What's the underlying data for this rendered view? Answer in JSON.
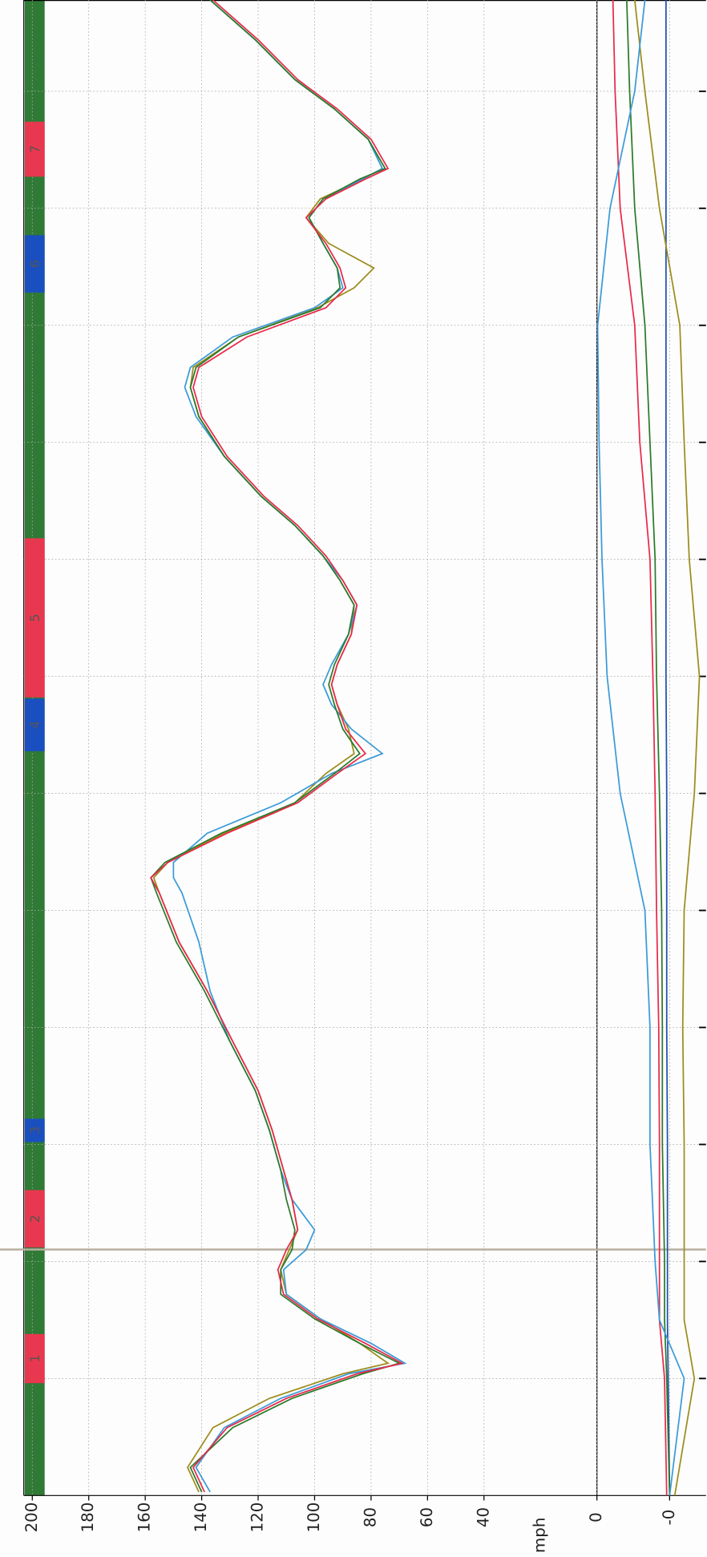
{
  "chart_data": [
    {
      "type": "line",
      "y_label": "mph",
      "grid": true,
      "ylim": [
        0,
        203
      ],
      "yticks": [
        0,
        40,
        60,
        80,
        100,
        120,
        140,
        160,
        180,
        200
      ],
      "xlim": [
        0,
        12.78
      ],
      "xticks": [
        1,
        2,
        3,
        4,
        5,
        6,
        7,
        8,
        9,
        10,
        11,
        12
      ],
      "x": [
        0.03,
        0.24,
        0.58,
        0.83,
        1.04,
        1.13,
        1.3,
        1.51,
        1.72,
        1.93,
        2.1,
        2.27,
        2.53,
        2.78,
        3.12,
        3.46,
        3.88,
        4.31,
        4.73,
        5.15,
        5.28,
        5.41,
        5.66,
        5.92,
        6.17,
        6.34,
        6.55,
        6.76,
        6.93,
        7.1,
        7.36,
        7.61,
        7.82,
        8.03,
        8.29,
        8.54,
        8.88,
        9.22,
        9.47,
        9.64,
        9.9,
        10.15,
        10.32,
        10.49,
        10.7,
        10.92,
        11.08,
        11.25,
        11.34,
        11.59,
        11.85,
        12.1,
        12.44,
        12.78
      ],
      "series": [
        {
          "color": "#9c8c1c",
          "values": [
            141,
            145,
            136,
            116,
            90,
            74,
            84,
            98,
            110,
            112,
            109,
            106,
            108,
            111,
            115,
            120,
            129,
            138,
            148,
            155,
            157,
            152,
            132,
            107,
            96,
            86,
            88,
            92,
            94,
            92,
            87,
            86,
            91,
            97,
            107,
            119,
            132,
            141,
            144,
            143,
            127,
            99,
            86,
            79,
            95,
            103,
            98,
            83,
            76,
            81,
            93,
            107,
            121,
            137
          ]
        },
        {
          "color": "#3a9ad9",
          "values": [
            137,
            142,
            132,
            112,
            88,
            68,
            80,
            98,
            110,
            111,
            103,
            100,
            108,
            112,
            116,
            121,
            130,
            137,
            141,
            147,
            150,
            150,
            138,
            112,
            94,
            76,
            87,
            94,
            97,
            94,
            88,
            85,
            90,
            97,
            107,
            119,
            132,
            142,
            146,
            144,
            129,
            100,
            90,
            92,
            97,
            102,
            97,
            83,
            76,
            81,
            93,
            107,
            121,
            137
          ]
        },
        {
          "color": "#2b7a2b",
          "values": [
            140,
            144,
            129,
            108,
            83,
            70,
            84,
            100,
            112,
            112,
            108,
            107,
            110,
            112,
            116,
            121,
            130,
            139,
            149,
            156,
            158,
            153,
            133,
            107,
            93,
            84,
            90,
            93,
            95,
            93,
            88,
            86,
            91,
            97,
            107,
            119,
            132,
            141,
            144,
            142,
            127,
            98,
            91,
            92,
            97,
            102,
            97,
            84,
            75,
            81,
            93,
            107,
            121,
            137
          ]
        },
        {
          "color": "#e8294a",
          "values": [
            139,
            143,
            131,
            110,
            85,
            69,
            82,
            99,
            111,
            113,
            110,
            106,
            108,
            111,
            115,
            120,
            129,
            138,
            148,
            155,
            158,
            152,
            131,
            106,
            92,
            82,
            89,
            92,
            94,
            92,
            87,
            85,
            90,
            96,
            106,
            118,
            131,
            140,
            143,
            141,
            124,
            96,
            89,
            91,
            96,
            103,
            96,
            82,
            74,
            80,
            92,
            106,
            120,
            136
          ]
        }
      ],
      "corners": [
        {
          "label": "1",
          "color": "#e8384f",
          "from": 0.96,
          "to": 1.38
        },
        {
          "label": "2",
          "color": "#e8384f",
          "from": 2.12,
          "to": 2.61
        },
        {
          "label": "3",
          "color": "#1a4fc0",
          "from": 3.02,
          "to": 3.22
        },
        {
          "label": "4",
          "color": "#1a4fc0",
          "from": 6.36,
          "to": 6.81
        },
        {
          "label": "5",
          "color": "#e8384f",
          "from": 6.82,
          "to": 8.18
        },
        {
          "label": "6",
          "color": "#1a4fc0",
          "from": 10.28,
          "to": 10.77
        },
        {
          "label": "7",
          "color": "#e8384f",
          "from": 11.27,
          "to": 11.74
        }
      ]
    },
    {
      "type": "line",
      "grid": true,
      "ylim": [
        -0.5,
        1.0
      ],
      "yticks": [
        {
          "value": 0,
          "label": "-0"
        }
      ],
      "xlim": [
        0,
        12.78
      ],
      "x": [
        0,
        1,
        1.5,
        2,
        3,
        4,
        5,
        6,
        7,
        8,
        9,
        10,
        11,
        12,
        12.78
      ],
      "series": [
        {
          "color": "#2050b0",
          "values": [
            0,
            0.02,
            0.03,
            0.03,
            0.03,
            0.04,
            0.04,
            0.04,
            0.05,
            0.05,
            0.05,
            0.05,
            0.05,
            0.05,
            0.05
          ]
        },
        {
          "color": "#9c8c1c",
          "values": [
            -0.07,
            -0.34,
            -0.2,
            -0.2,
            -0.2,
            -0.18,
            -0.2,
            -0.34,
            -0.41,
            -0.27,
            -0.2,
            -0.14,
            0.14,
            0.34,
            0.48
          ]
        },
        {
          "color": "#2b7a2b",
          "values": [
            0,
            0.04,
            0.07,
            0.07,
            0.1,
            0.1,
            0.11,
            0.14,
            0.18,
            0.2,
            0.27,
            0.34,
            0.48,
            0.55,
            0.59
          ]
        },
        {
          "color": "#e8294a",
          "values": [
            0.04,
            0.07,
            0.14,
            0.14,
            0.14,
            0.15,
            0.18,
            0.2,
            0.23,
            0.27,
            0.41,
            0.48,
            0.68,
            0.75,
            0.78
          ]
        },
        {
          "color": "#3a9ad9",
          "values": [
            0,
            -0.2,
            0.14,
            0.2,
            0.27,
            0.27,
            0.34,
            0.68,
            0.86,
            0.93,
            0.97,
            0.99,
            0.82,
            0.48,
            0.34
          ]
        }
      ]
    }
  ]
}
